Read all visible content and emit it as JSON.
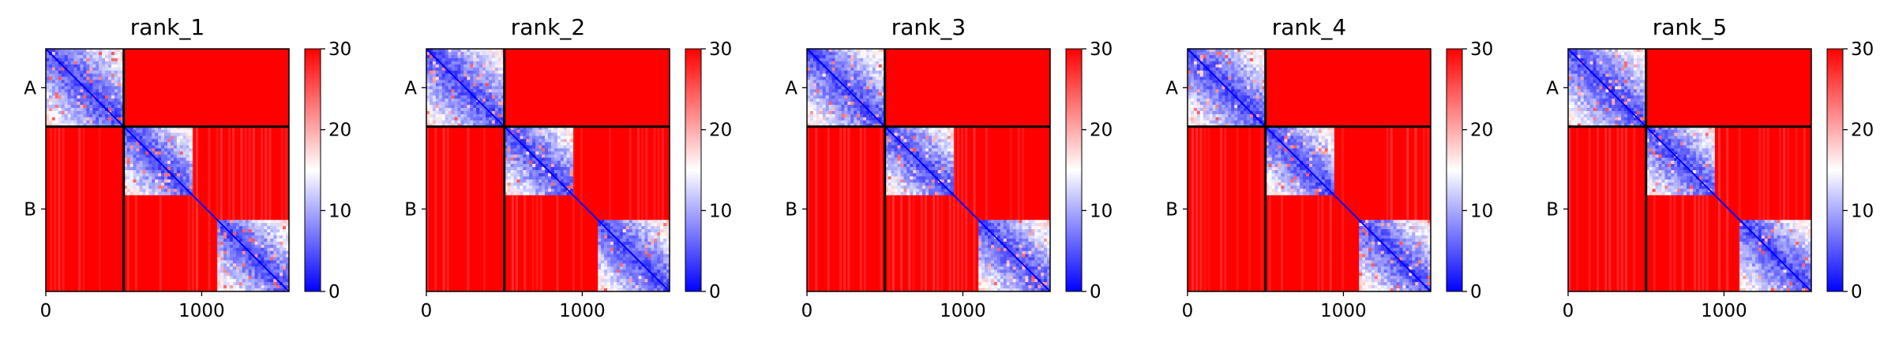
{
  "chart_data": [
    {
      "type": "heatmap",
      "title": "rank_1",
      "xlim": [
        0,
        1560
      ],
      "xticks": [
        {
          "value": 0,
          "label": "0"
        },
        {
          "value": 1000,
          "label": "1000"
        }
      ],
      "chain_boundary": 500,
      "y_chain_labels": [
        {
          "label": "A",
          "center": 250
        },
        {
          "label": "B",
          "center": 1030
        }
      ],
      "diagonal_blocks": [
        [
          0,
          500
        ],
        [
          500,
          940
        ],
        [
          1100,
          1560
        ]
      ],
      "colorbar": {
        "min": 0,
        "max": 30,
        "ticks": [
          0,
          10,
          20,
          30
        ],
        "colors": [
          "#0000ff",
          "#ffffff",
          "#ff0000"
        ]
      }
    },
    {
      "type": "heatmap",
      "title": "rank_2",
      "xlim": [
        0,
        1560
      ],
      "xticks": [
        {
          "value": 0,
          "label": "0"
        },
        {
          "value": 1000,
          "label": "1000"
        }
      ],
      "chain_boundary": 500,
      "y_chain_labels": [
        {
          "label": "A",
          "center": 250
        },
        {
          "label": "B",
          "center": 1030
        }
      ],
      "diagonal_blocks": [
        [
          0,
          500
        ],
        [
          500,
          940
        ],
        [
          1100,
          1560
        ]
      ],
      "colorbar": {
        "min": 0,
        "max": 30,
        "ticks": [
          0,
          10,
          20,
          30
        ],
        "colors": [
          "#0000ff",
          "#ffffff",
          "#ff0000"
        ]
      }
    },
    {
      "type": "heatmap",
      "title": "rank_3",
      "xlim": [
        0,
        1560
      ],
      "xticks": [
        {
          "value": 0,
          "label": "0"
        },
        {
          "value": 1000,
          "label": "1000"
        }
      ],
      "chain_boundary": 500,
      "y_chain_labels": [
        {
          "label": "A",
          "center": 250
        },
        {
          "label": "B",
          "center": 1030
        }
      ],
      "diagonal_blocks": [
        [
          0,
          500
        ],
        [
          500,
          940
        ],
        [
          1100,
          1560
        ]
      ],
      "colorbar": {
        "min": 0,
        "max": 30,
        "ticks": [
          0,
          10,
          20,
          30
        ],
        "colors": [
          "#0000ff",
          "#ffffff",
          "#ff0000"
        ]
      }
    },
    {
      "type": "heatmap",
      "title": "rank_4",
      "xlim": [
        0,
        1560
      ],
      "xticks": [
        {
          "value": 0,
          "label": "0"
        },
        {
          "value": 1000,
          "label": "1000"
        }
      ],
      "chain_boundary": 500,
      "y_chain_labels": [
        {
          "label": "A",
          "center": 250
        },
        {
          "label": "B",
          "center": 1030
        }
      ],
      "diagonal_blocks": [
        [
          0,
          500
        ],
        [
          500,
          940
        ],
        [
          1100,
          1560
        ]
      ],
      "colorbar": {
        "min": 0,
        "max": 30,
        "ticks": [
          0,
          10,
          20,
          30
        ],
        "colors": [
          "#0000ff",
          "#ffffff",
          "#ff0000"
        ]
      }
    },
    {
      "type": "heatmap",
      "title": "rank_5",
      "xlim": [
        0,
        1560
      ],
      "xticks": [
        {
          "value": 0,
          "label": "0"
        },
        {
          "value": 1000,
          "label": "1000"
        }
      ],
      "chain_boundary": 500,
      "y_chain_labels": [
        {
          "label": "A",
          "center": 250
        },
        {
          "label": "B",
          "center": 1030
        }
      ],
      "diagonal_blocks": [
        [
          0,
          500
        ],
        [
          500,
          940
        ],
        [
          1100,
          1560
        ]
      ],
      "colorbar": {
        "min": 0,
        "max": 30,
        "ticks": [
          0,
          10,
          20,
          30
        ],
        "colors": [
          "#0000ff",
          "#ffffff",
          "#ff0000"
        ]
      }
    }
  ]
}
